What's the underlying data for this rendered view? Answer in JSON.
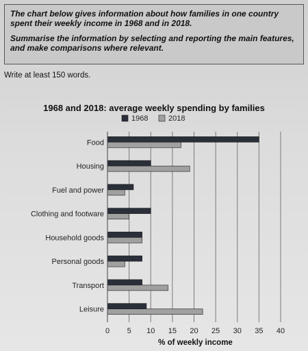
{
  "task": {
    "line1": "The chart below gives information about how families in one country spent their weekly income in 1968 and in 2018.",
    "line2": "Summarise the information by selecting and reporting the main features, and make comparisons where relevant."
  },
  "instruction": "Write at least 150 words.",
  "chart_data": {
    "type": "bar",
    "orientation": "horizontal",
    "title": "1968 and 2018: average weekly spending by families",
    "xlabel": "% of weekly income",
    "ylabel": "",
    "xlim": [
      0,
      40
    ],
    "xticks": [
      0,
      5,
      10,
      15,
      20,
      25,
      30,
      35,
      40
    ],
    "grid": true,
    "legend_position": "top-center",
    "categories": [
      "Food",
      "Housing",
      "Fuel and power",
      "Clothing and footware",
      "Household goods",
      "Personal goods",
      "Transport",
      "Leisure"
    ],
    "series": [
      {
        "name": "1968",
        "color": "#2b2f3a",
        "values": [
          35,
          10,
          6,
          10,
          8,
          8,
          8,
          9
        ]
      },
      {
        "name": "2018",
        "color": "#a0a0a0",
        "values": [
          17,
          19,
          4,
          5,
          8,
          4,
          14,
          22
        ]
      }
    ]
  }
}
